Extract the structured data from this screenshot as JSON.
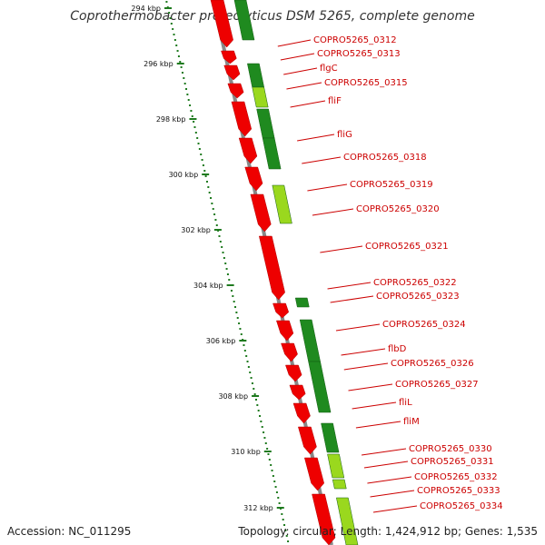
{
  "title": "Coprothermobacter proteolyticus DSM 5265, complete genome",
  "footer": {
    "accession": "Accession: NC_011295",
    "topology": "Topology: circular; Length: 1,424,912 bp; Genes: 1,535"
  },
  "colors": {
    "forward_cds": "#ee0000",
    "reverse_cds": "#1f8a1f",
    "reverse_cds_light": "#9ad81e",
    "backbone": "#888888",
    "tick": "#1f7a1f",
    "label": "#cc0000"
  },
  "tick_labels": [
    "294 kbp",
    "296 kbp",
    "298 kbp",
    "300 kbp",
    "302 kbp",
    "304 kbp",
    "306 kbp",
    "308 kbp",
    "310 kbp",
    "312 kbp"
  ],
  "gene_labels": [
    "COPRO5265_0312",
    "COPRO5265_0313",
    "flgC",
    "COPRO5265_0315",
    "fliF",
    "fliG",
    "COPRO5265_0318",
    "COPRO5265_0319",
    "COPRO5265_0320",
    "COPRO5265_0321",
    "COPRO5265_0322",
    "COPRO5265_0323",
    "COPRO5265_0324",
    "flbD",
    "COPRO5265_0326",
    "COPRO5265_0327",
    "fliL",
    "fliM",
    "COPRO5265_0330",
    "COPRO5265_0331",
    "COPRO5265_0332",
    "COPRO5265_0333",
    "COPRO5265_0334"
  ]
}
